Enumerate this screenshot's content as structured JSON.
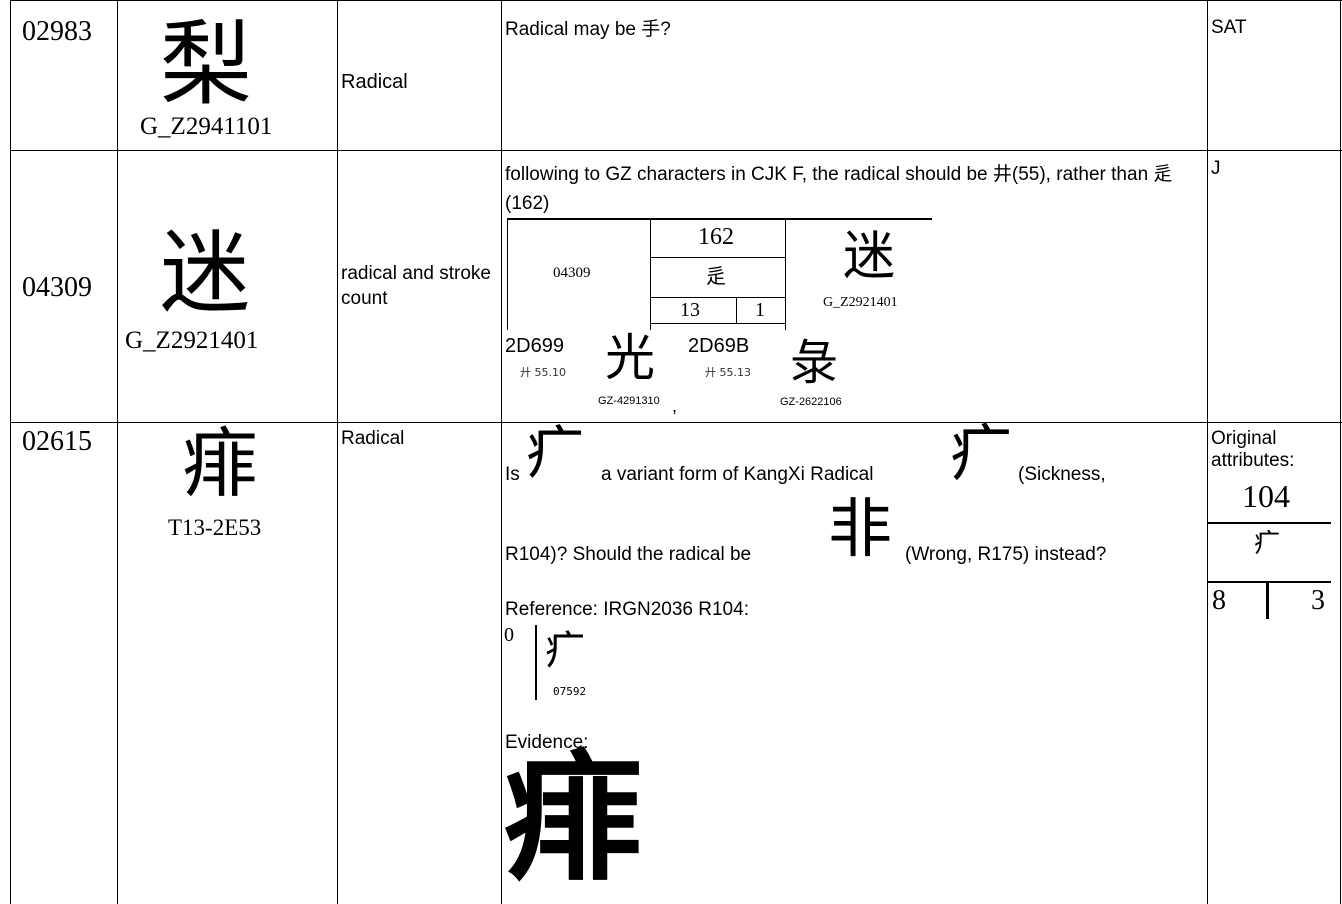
{
  "rows": [
    {
      "sn": "02983",
      "glyph": "梨",
      "source": "G_Z2941101",
      "category": "Radical",
      "comment": "Radical may be 手?",
      "status": "SAT"
    },
    {
      "sn": "04309",
      "glyph": "迷",
      "source": "G_Z2921401",
      "category": "radical and stroke count",
      "comment": "following to GZ characters in CJK F, the radical should be 井(55), rather than 辵(162)",
      "attributes": {
        "sn": "04309",
        "radical": "162",
        "radical_char": "辵",
        "strokes": "13",
        "first_stroke": "1",
        "glyph": "迷",
        "source": "G_Z2921401"
      },
      "candidates": [
        {
          "code": "2D699",
          "radical": "廾 55.10",
          "glyph": "光",
          "source": "GZ-4291310",
          "separator": ","
        },
        {
          "code": "2D69B",
          "radical": "廾 55.13",
          "glyph": "彔",
          "source": "GZ-2622106"
        }
      ],
      "status": "J"
    },
    {
      "sn": "02615",
      "glyph": "痱",
      "source": "T13-2E53",
      "category": "Radical",
      "comment": {
        "is": "Is",
        "glyph_a": "疒",
        "text_a": "a variant form of KangXi Radical",
        "glyph_b": "疒",
        "text_b": "(Sickness,",
        "text_c": "R104)?  Should the radical be",
        "glyph_c": "非",
        "text_d": "(Wrong, R175) instead?",
        "reference": "Reference: IRGN2036 R104:",
        "ref_strokes": "0",
        "ref_glyph": "疒",
        "ref_code": "07592",
        "evidence": "Evidence:",
        "evidence_glyph": "痱"
      },
      "status": {
        "label": "Original attributes:",
        "radical": "104",
        "radical_char": "疒",
        "strokes": "8",
        "first_stroke": "3"
      }
    }
  ]
}
